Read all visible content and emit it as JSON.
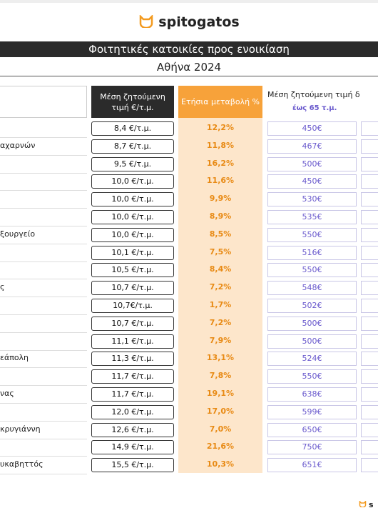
{
  "header": {
    "logo": "spitogatos",
    "title": "Φοιτητικές κατοικίες προς ενοικίαση",
    "subtitle": "Αθήνα 2024"
  },
  "table": {
    "columns": {
      "price": "Μέση ζητούμενη τιμή €/τ.μ.",
      "change": "Ετήσια μεταβολή %",
      "rent": "Μέση ζητούμενη τιμή δ",
      "rent_sub": "έως 65 τ.μ."
    },
    "rows": [
      {
        "price": "8,4 €/τ.μ.",
        "change": "12,2%",
        "rent": "450€"
      },
      {
        "name": "αχαρνών",
        "price": "8,7 €/τ.μ.",
        "change": "11,8%",
        "rent": "467€"
      },
      {
        "price": "9,5 €/τ.μ.",
        "change": "16,2%",
        "rent": "500€"
      },
      {
        "price": "10,0 €/τ.μ.",
        "change": "11,6%",
        "rent": "450€"
      },
      {
        "price": "10,0 €/τ.μ.",
        "change": "9,9%",
        "rent": "530€"
      },
      {
        "price": "10,0 €/τ.μ.",
        "change": "8,9%",
        "rent": "535€"
      },
      {
        "name": "ξουργείο",
        "price": "10,0 €/τ.μ.",
        "change": "8,5%",
        "rent": "550€"
      },
      {
        "price": "10,1 €/τ.μ.",
        "change": "7,5%",
        "rent": "516€"
      },
      {
        "price": "10,5 €/τ.μ.",
        "change": "8,4%",
        "rent": "550€"
      },
      {
        "name": "ς",
        "price": "10,7 €/τ.μ.",
        "change": "7,2%",
        "rent": "548€"
      },
      {
        "price": "10,7€/τ.μ.",
        "change": "1,7%",
        "rent": "502€"
      },
      {
        "price": "10,7 €/τ.μ.",
        "change": "7,2%",
        "rent": "500€"
      },
      {
        "price": "11,1 €/τ.μ.",
        "change": "7,9%",
        "rent": "500€"
      },
      {
        "name": "εάπολη",
        "price": "11,3 €/τ.μ.",
        "change": "13,1%",
        "rent": "524€"
      },
      {
        "price": "11,7 €/τ.μ.",
        "change": "7,8%",
        "rent": "550€"
      },
      {
        "name": "νας",
        "price": "11,7 €/τ.μ.",
        "change": "19,1%",
        "rent": "638€"
      },
      {
        "price": "12,0 €/τ.μ.",
        "change": "17,0%",
        "rent": "599€"
      },
      {
        "name": "κρυγιάννη",
        "price": "12,6 €/τ.μ.",
        "change": "7,0%",
        "rent": "650€"
      },
      {
        "price": "14,9 €/τ.μ.",
        "change": "21,6%",
        "rent": "750€"
      },
      {
        "name": "υκαβηττός",
        "price": "15,5 €/τ.μ.",
        "change": "10,3%",
        "rent": "651€"
      }
    ]
  },
  "footer": {
    "logo": "s"
  }
}
